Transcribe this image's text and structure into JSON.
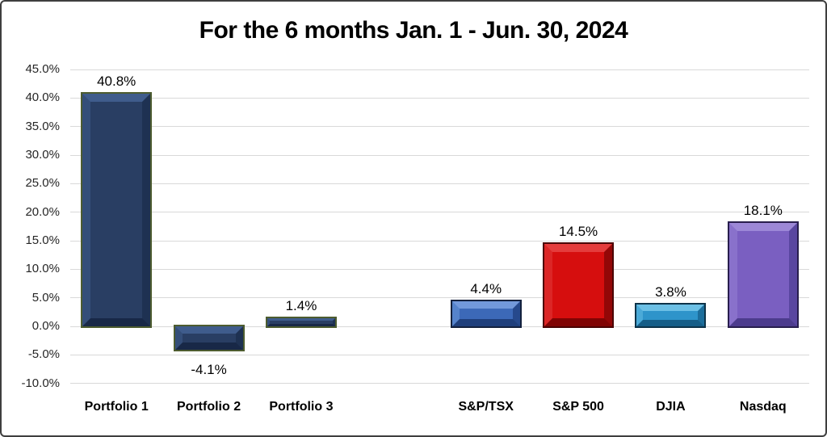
{
  "chart_data": {
    "type": "bar",
    "title": "For the 6 months Jan. 1 - Jun. 30, 2024",
    "xlabel": "",
    "ylabel": "",
    "ylim": [
      -10,
      45
    ],
    "grid": true,
    "legend": "none",
    "categories": [
      "Portfolio 1",
      "Portfolio 2",
      "Portfolio 3",
      "S&P/TSX",
      "S&P 500",
      "DJIA",
      "Nasdaq"
    ],
    "values": [
      40.8,
      -4.1,
      1.4,
      4.4,
      14.5,
      3.8,
      18.1
    ],
    "value_labels": [
      "40.8%",
      "-4.1%",
      "1.4%",
      "4.4%",
      "14.5%",
      "3.8%",
      "18.1%"
    ],
    "yticks": [
      {
        "value": 45,
        "label": "45.0%"
      },
      {
        "value": 40,
        "label": "40.0%"
      },
      {
        "value": 35,
        "label": "35.0%"
      },
      {
        "value": 30,
        "label": "30.0%"
      },
      {
        "value": 25,
        "label": "25.0%"
      },
      {
        "value": 20,
        "label": "20.0%"
      },
      {
        "value": 15,
        "label": "15.0%"
      },
      {
        "value": 10,
        "label": "10.0%"
      },
      {
        "value": 5,
        "label": "5.0%"
      },
      {
        "value": 0,
        "label": "0.0%"
      },
      {
        "value": -5,
        "label": "-5.0%"
      },
      {
        "value": -10,
        "label": "-10.0%"
      }
    ],
    "bars": [
      {
        "category": "Portfolio 1",
        "value": 40.8,
        "label": "40.8%",
        "color": {
          "base": "#293e63",
          "top": "#3f5c8c",
          "left": "#344e79",
          "right": "#1e3152",
          "bottom": "#182847",
          "outline": "#4d5c2f"
        }
      },
      {
        "category": "Portfolio 2",
        "value": -4.1,
        "label": "-4.1%",
        "color": {
          "base": "#293e63",
          "top": "#3f5c8c",
          "left": "#344e79",
          "right": "#1e3152",
          "bottom": "#182847",
          "outline": "#4d5c2f"
        }
      },
      {
        "category": "Portfolio 3",
        "value": 1.4,
        "label": "1.4%",
        "color": {
          "base": "#293e63",
          "top": "#3f5c8c",
          "left": "#344e79",
          "right": "#1e3152",
          "bottom": "#182847",
          "outline": "#4d5c2f"
        }
      },
      {
        "category": "S&P/TSX",
        "value": 4.4,
        "label": "4.4%",
        "color": {
          "base": "#3c69b8",
          "top": "#7299db",
          "left": "#5583cb",
          "right": "#26498c",
          "bottom": "#1f3f7c",
          "outline": "#14213d"
        }
      },
      {
        "category": "S&P 500",
        "value": 14.5,
        "label": "14.5%",
        "color": {
          "base": "#d60e0e",
          "top": "#e43c3c",
          "left": "#dc2626",
          "right": "#930707",
          "bottom": "#800404",
          "outline": "#4a0303"
        }
      },
      {
        "category": "DJIA",
        "value": 3.8,
        "label": "3.8%",
        "color": {
          "base": "#2e94ca",
          "top": "#6cc0e5",
          "left": "#4baad8",
          "right": "#1c6e9c",
          "bottom": "#165e88",
          "outline": "#0d3349"
        }
      },
      {
        "category": "Nasdaq",
        "value": 18.1,
        "label": "18.1%",
        "color": {
          "base": "#7a5fc1",
          "top": "#9d88d7",
          "left": "#8971cb",
          "right": "#5946a0",
          "bottom": "#4c3b8d",
          "outline": "#281e4d"
        }
      }
    ],
    "gap_before_indices": [
      3
    ],
    "colors_note": {
      "gridline": "#d9d9d9",
      "tick_text": "#262626",
      "frame_border": "#3f3f3f"
    }
  }
}
